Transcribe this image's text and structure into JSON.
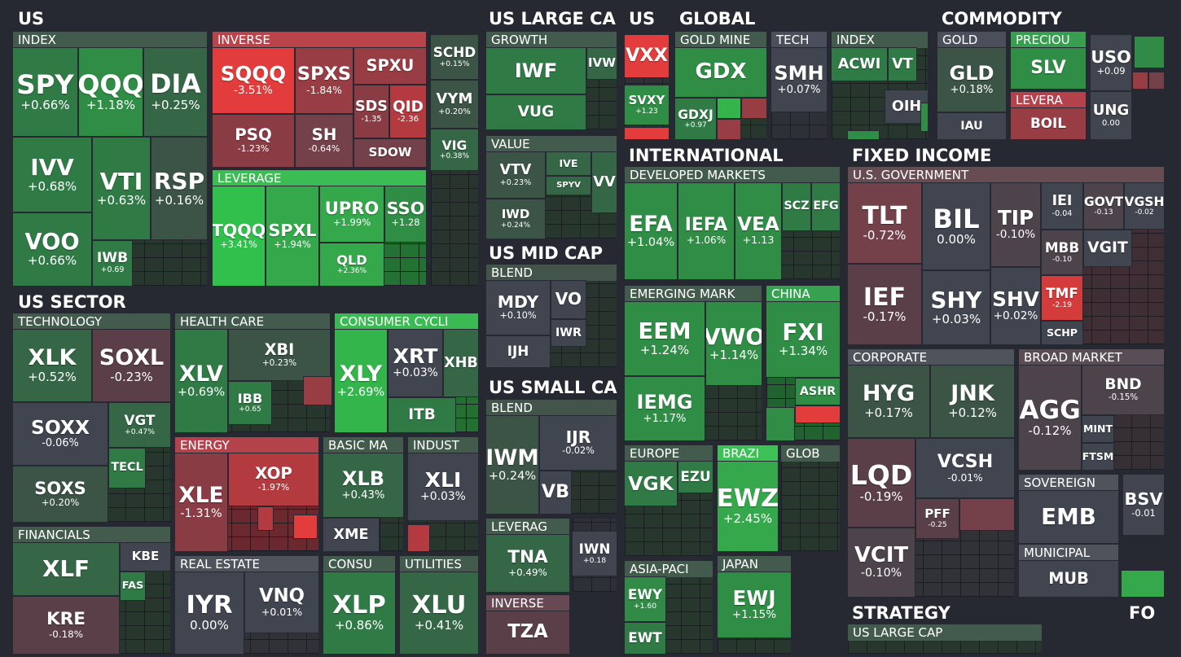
{
  "sections": [
    {
      "title": "US",
      "groups": [
        {
          "title": "INDEX",
          "color": "#3a4f42",
          "tiles": [
            {
              "ticker": "SPY",
              "change": "+0.66%",
              "color": "#2f7a45"
            },
            {
              "ticker": "QQQ",
              "change": "+1.18%",
              "color": "#2f8d46"
            },
            {
              "ticker": "DIA",
              "change": "+0.25%",
              "color": "#356747"
            },
            {
              "ticker": "IVV",
              "change": "+0.68%",
              "color": "#2f7a45"
            },
            {
              "ticker": "VOO",
              "change": "+0.66%",
              "color": "#2f7a45"
            },
            {
              "ticker": "VTI",
              "change": "+0.63%",
              "color": "#2f7a45"
            },
            {
              "ticker": "RSP",
              "change": "+0.16%",
              "color": "#3b5446"
            },
            {
              "ticker": "IWB",
              "change": "+0.69",
              "color": "#2f7a45"
            }
          ]
        },
        {
          "title": "INVERSE",
          "color": "#a33a40",
          "tiles": [
            {
              "ticker": "SQQQ",
              "change": "-3.51%",
              "color": "#e23c3c"
            },
            {
              "ticker": "PSQ",
              "change": "-1.23%",
              "color": "#8a3c45"
            },
            {
              "ticker": "SPXS",
              "change": "-1.84%",
              "color": "#993d45"
            },
            {
              "ticker": "SH",
              "change": "-0.64%",
              "color": "#74404a"
            },
            {
              "ticker": "SPXU",
              "color": "#993d45"
            },
            {
              "ticker": "SDS",
              "change": "-1.35",
              "color": "#8a3c45"
            },
            {
              "ticker": "QID",
              "change": "-2.36",
              "color": "#b33b40"
            },
            {
              "ticker": "SDOW",
              "color": "#74404a"
            }
          ]
        },
        {
          "title": "LEVERAGE",
          "color": "#34a449",
          "tiles": [
            {
              "ticker": "TQQQ",
              "change": "+3.41%",
              "color": "#30c04b"
            },
            {
              "ticker": "SPXL",
              "change": "+1.94%",
              "color": "#35a84c"
            },
            {
              "ticker": "UPRO",
              "change": "+1.99%",
              "color": "#35a84c"
            },
            {
              "ticker": "SSO",
              "change": "+1.28",
              "color": "#2f8d46"
            },
            {
              "ticker": "QLD",
              "change": "+2.36%",
              "color": "#35a84c"
            }
          ]
        },
        {
          "color": "#3a4a40",
          "tiles": [
            {
              "ticker": "SCHD",
              "change": "+0.15%",
              "color": "#3b5446"
            },
            {
              "ticker": "VYM",
              "change": "+0.20%",
              "color": "#3b5446"
            },
            {
              "ticker": "VIG",
              "change": "+0.38%",
              "color": "#356747"
            }
          ]
        }
      ]
    },
    {
      "title": "US SECTOR",
      "groups": [
        {
          "title": "TECHNOLOGY",
          "color": "#3a4f42",
          "tiles": [
            {
              "ticker": "XLK",
              "change": "+0.52%",
              "color": "#356747"
            },
            {
              "ticker": "SOXL",
              "change": "-0.23%",
              "color": "#5a3f48"
            },
            {
              "ticker": "SOXX",
              "change": "-0.06%",
              "color": "#41454f"
            },
            {
              "ticker": "SOXS",
              "change": "+0.20%",
              "color": "#3b5446"
            },
            {
              "ticker": "VGT",
              "change": "+0.47%",
              "color": "#356747"
            },
            {
              "ticker": "TECL",
              "color": "#2f7a45"
            }
          ]
        },
        {
          "title": "FINANCIALS",
          "color": "#3a4f42",
          "tiles": [
            {
              "ticker": "XLF",
              "color": "#356747"
            },
            {
              "ticker": "KRE",
              "change": "-0.18%",
              "color": "#5a3f48"
            },
            {
              "ticker": "KBE",
              "color": "#41454f"
            },
            {
              "ticker": "FAS",
              "color": "#2f7a45"
            }
          ]
        },
        {
          "title": "HEALTH CARE",
          "color": "#3a4f42",
          "tiles": [
            {
              "ticker": "XLV",
              "change": "+0.69%",
              "color": "#2f7a45"
            },
            {
              "ticker": "XBI",
              "change": "+0.23%",
              "color": "#3b5446"
            },
            {
              "ticker": "IBB",
              "change": "+0.65",
              "color": "#2f7a45"
            }
          ]
        },
        {
          "title": "CONSUMER CYCLI",
          "color": "#33a148",
          "tiles": [
            {
              "ticker": "XLY",
              "change": "+2.69%",
              "color": "#33b54b"
            },
            {
              "ticker": "XRT",
              "change": "+0.03%",
              "color": "#41454f"
            },
            {
              "ticker": "XHB",
              "color": "#356747"
            },
            {
              "ticker": "ITB",
              "color": "#2f7a45"
            }
          ]
        },
        {
          "title": "ENERGY",
          "color": "#9b3a43",
          "tiles": [
            {
              "ticker": "XLE",
              "change": "-1.31%",
              "color": "#8a3c45"
            },
            {
              "ticker": "XOP",
              "change": "-1.97%",
              "color": "#b33b40"
            }
          ]
        },
        {
          "title": "BASIC MA",
          "color": "#3a4f42",
          "tiles": [
            {
              "ticker": "XLB",
              "change": "+0.43%",
              "color": "#356747"
            },
            {
              "ticker": "XME",
              "color": "#41454f"
            }
          ]
        },
        {
          "title": "INDUST",
          "color": "#3a4f42",
          "tiles": [
            {
              "ticker": "XLI",
              "change": "+0.03%",
              "color": "#41454f"
            }
          ]
        },
        {
          "title": "REAL ESTATE",
          "color": "#444850",
          "tiles": [
            {
              "ticker": "IYR",
              "change": "0.00%",
              "color": "#41454f"
            },
            {
              "ticker": "VNQ",
              "change": "+0.01%",
              "color": "#41454f"
            }
          ]
        },
        {
          "title": "CONSU",
          "color": "#3a4f42",
          "tiles": [
            {
              "ticker": "XLP",
              "change": "+0.86%",
              "color": "#2f7a45"
            }
          ]
        },
        {
          "title": "UTILITIES",
          "color": "#3a4f42",
          "tiles": [
            {
              "ticker": "XLU",
              "change": "+0.41%",
              "color": "#356747"
            }
          ]
        }
      ]
    },
    {
      "title": "US LARGE CA",
      "groups": [
        {
          "title": "GROWTH",
          "color": "#3a4f42",
          "tiles": [
            {
              "ticker": "IWF",
              "color": "#2f7a45"
            },
            {
              "ticker": "IVW",
              "color": "#356747"
            },
            {
              "ticker": "VUG",
              "color": "#2f7a45"
            }
          ]
        },
        {
          "title": "VALUE",
          "color": "#3a4f42",
          "tiles": [
            {
              "ticker": "VTV",
              "change": "+0.23%",
              "color": "#3b5446"
            },
            {
              "ticker": "IVE",
              "color": "#356747"
            },
            {
              "ticker": "SPYV",
              "color": "#356747"
            },
            {
              "ticker": "VV",
              "color": "#356747"
            },
            {
              "ticker": "IWD",
              "change": "+0.24%",
              "color": "#3b5446"
            }
          ]
        }
      ]
    },
    {
      "title": "US MID CAP",
      "groups": [
        {
          "title": "BLEND",
          "color": "#3a4a40",
          "tiles": [
            {
              "ticker": "MDY",
              "change": "+0.10%",
              "color": "#41454f"
            },
            {
              "ticker": "VO",
              "color": "#41454f"
            },
            {
              "ticker": "IWR",
              "color": "#41454f"
            },
            {
              "ticker": "IJH",
              "color": "#41454f"
            }
          ]
        }
      ]
    },
    {
      "title": "US SMALL CA",
      "groups": [
        {
          "title": "BLEND",
          "color": "#3a4a40",
          "tiles": [
            {
              "ticker": "IWM",
              "change": "+0.24%",
              "color": "#3b5446"
            },
            {
              "ticker": "IJR",
              "change": "-0.02%",
              "color": "#41454f"
            },
            {
              "ticker": "VB",
              "color": "#41454f"
            }
          ]
        },
        {
          "title": "LEVERAG",
          "color": "#3a4f42",
          "tiles": [
            {
              "ticker": "TNA",
              "change": "+0.49%",
              "color": "#356747"
            }
          ]
        },
        {
          "color": "#41454f",
          "tiles": [
            {
              "ticker": "IWN",
              "change": "+0.18",
              "color": "#41454f"
            }
          ]
        },
        {
          "title": "INVERSE",
          "color": "#5a3f48",
          "tiles": [
            {
              "ticker": "TZA",
              "color": "#5a3f48"
            }
          ]
        }
      ]
    },
    {
      "title": "US",
      "groups": [
        {
          "color": "#41454f",
          "tiles": [
            {
              "ticker": "VXX",
              "color": "#e23c3c"
            },
            {
              "ticker": "SVXY",
              "change": "+1.23",
              "color": "#2f8d46"
            }
          ]
        }
      ]
    },
    {
      "title": "GLOBAL",
      "groups": [
        {
          "title": "GOLD MINE",
          "color": "#3a4f42",
          "tiles": [
            {
              "ticker": "GDX",
              "color": "#2f8d46"
            },
            {
              "ticker": "GDXJ",
              "change": "+0.97",
              "color": "#2f7a45"
            }
          ]
        },
        {
          "title": "TECH",
          "color": "#41454f",
          "tiles": [
            {
              "ticker": "SMH",
              "change": "+0.07%",
              "color": "#41454f"
            }
          ]
        },
        {
          "title": "INDEX",
          "color": "#3a4f42",
          "tiles": [
            {
              "ticker": "ACWI",
              "color": "#2f7a45"
            },
            {
              "ticker": "VT",
              "color": "#2f7a45"
            },
            {
              "ticker": "OIH",
              "color": "#41454f"
            }
          ]
        }
      ]
    },
    {
      "title": "COMMODITY",
      "groups": [
        {
          "title": "GOLD",
          "color": "#41454f",
          "tiles": [
            {
              "ticker": "GLD",
              "change": "+0.18%",
              "color": "#3b5446"
            },
            {
              "ticker": "IAU",
              "color": "#41454f"
            }
          ]
        },
        {
          "title": "PRECIOU",
          "color": "#318a46",
          "tiles": [
            {
              "ticker": "SLV",
              "color": "#2f8d46"
            }
          ]
        },
        {
          "title": "LEVERA",
          "color": "#9b3a43",
          "tiles": [
            {
              "ticker": "BOIL",
              "color": "#993d45"
            }
          ]
        },
        {
          "color": "#41454f",
          "tiles": [
            {
              "ticker": "USO",
              "change": "+0.09",
              "color": "#41454f"
            },
            {
              "ticker": "UNG",
              "change": "0.00",
              "color": "#41454f"
            }
          ]
        }
      ]
    },
    {
      "title": "INTERNATIONAL",
      "groups": [
        {
          "title": "DEVELOPED MARKETS",
          "color": "#3a4f42",
          "tiles": [
            {
              "ticker": "EFA",
              "change": "+1.04%",
              "color": "#2f8d46"
            },
            {
              "ticker": "IEFA",
              "change": "+1.06%",
              "color": "#2f8d46"
            },
            {
              "ticker": "VEA",
              "change": "+1.13",
              "color": "#2f8d46"
            },
            {
              "ticker": "SCZ",
              "color": "#2f7a45"
            },
            {
              "ticker": "EFG",
              "color": "#2f7a45"
            }
          ]
        },
        {
          "title": "EMERGING MARK",
          "color": "#3a4f42",
          "tiles": [
            {
              "ticker": "EEM",
              "change": "+1.24%",
              "color": "#2f8d46"
            },
            {
              "ticker": "VWO",
              "change": "+1.14%",
              "color": "#2f8d46"
            },
            {
              "ticker": "IEMG",
              "change": "+1.17%",
              "color": "#2f8d46"
            }
          ]
        },
        {
          "title": "CHINA",
          "color": "#2f8d46",
          "tiles": [
            {
              "ticker": "FXI",
              "change": "+1.34%",
              "color": "#2f8d46"
            },
            {
              "ticker": "ASHR",
              "color": "#2f8d46"
            }
          ]
        },
        {
          "title": "EUROPE",
          "color": "#3a4f42",
          "tiles": [
            {
              "ticker": "VGK",
              "color": "#2f7a45"
            },
            {
              "ticker": "EZU",
              "color": "#2f7a45"
            }
          ]
        },
        {
          "title": "BRAZI",
          "color": "#35a84c",
          "tiles": [
            {
              "ticker": "EWZ",
              "change": "+2.45%",
              "color": "#35a84c"
            }
          ]
        },
        {
          "title": "GLOB",
          "color": "#3a4f42"
        },
        {
          "title": "ASIA-PACI",
          "color": "#3a4f42",
          "tiles": [
            {
              "ticker": "EWY",
              "change": "+1.60",
              "color": "#318a46"
            },
            {
              "ticker": "EWT",
              "color": "#2f7a45"
            }
          ]
        },
        {
          "title": "JAPAN",
          "color": "#3a4f42",
          "tiles": [
            {
              "ticker": "EWJ",
              "change": "+1.15%",
              "color": "#2f8d46"
            }
          ]
        }
      ]
    },
    {
      "title": "FIXED INCOME",
      "groups": [
        {
          "title": "U.S. GOVERNMENT",
          "color": "#5a4249",
          "tiles": [
            {
              "ticker": "TLT",
              "change": "-0.72%",
              "color": "#74404a"
            },
            {
              "ticker": "IEF",
              "change": "-0.17%",
              "color": "#5a3f48"
            },
            {
              "ticker": "BIL",
              "change": "0.00%",
              "color": "#41454f"
            },
            {
              "ticker": "SHY",
              "change": "+0.03%",
              "color": "#41454f"
            },
            {
              "ticker": "TIP",
              "change": "-0.10%",
              "color": "#4d434b"
            },
            {
              "ticker": "SHV",
              "change": "+0.02%",
              "color": "#41454f"
            },
            {
              "ticker": "IEI",
              "change": "-0.04",
              "color": "#41454f"
            },
            {
              "ticker": "GOVT",
              "change": "-0.13",
              "color": "#4d434b"
            },
            {
              "ticker": "VGSH",
              "change": "-0.02",
              "color": "#41454f"
            },
            {
              "ticker": "MBB",
              "change": "-0.10",
              "color": "#4d434b"
            },
            {
              "ticker": "VGIT",
              "color": "#41454f"
            },
            {
              "ticker": "TMF",
              "change": "-2.19",
              "color": "#d43c3c"
            },
            {
              "ticker": "SCHP",
              "color": "#41454f"
            }
          ]
        },
        {
          "title": "CORPORATE",
          "color": "#444850",
          "tiles": [
            {
              "ticker": "HYG",
              "change": "+0.17%",
              "color": "#3b5446"
            },
            {
              "ticker": "JNK",
              "change": "+0.12%",
              "color": "#3b5446"
            },
            {
              "ticker": "LQD",
              "change": "-0.19%",
              "color": "#5a3f48"
            },
            {
              "ticker": "VCIT",
              "change": "-0.10%",
              "color": "#4d434b"
            },
            {
              "ticker": "VCSH",
              "change": "-0.01%",
              "color": "#41454f"
            },
            {
              "ticker": "PFF",
              "change": "-0.25",
              "color": "#5a3f48"
            }
          ]
        },
        {
          "title": "BROAD MARKET",
          "color": "#4d444b",
          "tiles": [
            {
              "ticker": "BND",
              "change": "-0.15%",
              "color": "#4d434b"
            },
            {
              "ticker": "AGG",
              "change": "-0.12%",
              "color": "#4d434b"
            },
            {
              "ticker": "MINT",
              "color": "#41454f"
            },
            {
              "ticker": "FTSM",
              "color": "#41454f"
            }
          ]
        },
        {
          "title": "SOVEREIGN",
          "color": "#444850",
          "tiles": [
            {
              "ticker": "EMB",
              "color": "#41454f"
            }
          ]
        },
        {
          "color": "#41454f",
          "tiles": [
            {
              "ticker": "BSV",
              "change": "-0.01",
              "color": "#41454f"
            }
          ]
        },
        {
          "title": "MUNICIPAL",
          "color": "#444850",
          "tiles": [
            {
              "ticker": "MUB",
              "color": "#41454f"
            }
          ]
        }
      ]
    },
    {
      "title": "STRATEGY",
      "groups": [
        {
          "title": "US LARGE CAP",
          "color": "#3a4f42"
        }
      ]
    },
    {
      "title": "FO"
    }
  ]
}
